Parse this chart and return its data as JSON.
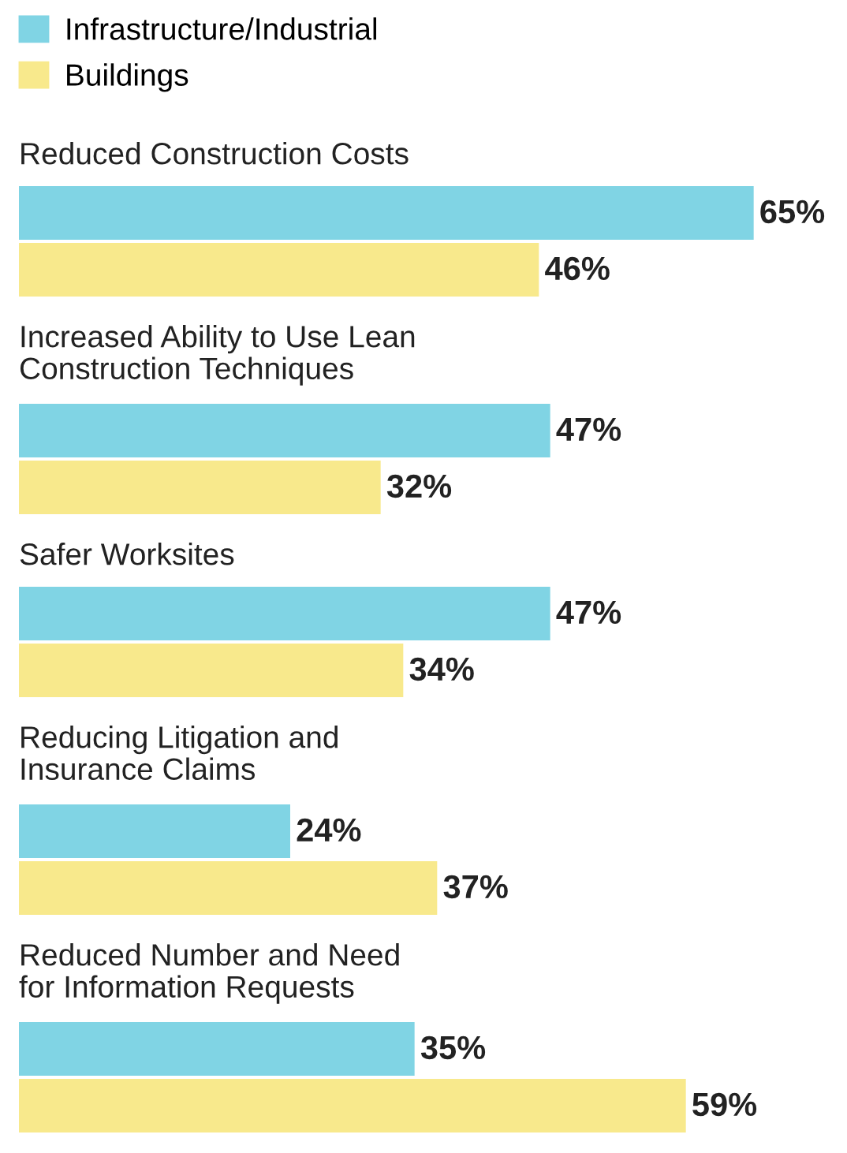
{
  "chart_data": {
    "type": "bar",
    "orientation": "horizontal",
    "categories": [
      "Reduced Construction Costs",
      "Increased Ability to Use Lean\nConstruction Techniques",
      "Safer Worksites",
      "Reducing Litigation and\nInsurance Claims",
      "Reduced Number and Need\nfor Information Requests"
    ],
    "series": [
      {
        "name": "Infrastructure/Industrial",
        "color": "#80d4e4",
        "values": [
          65,
          47,
          47,
          24,
          35
        ],
        "value_labels": [
          "65%",
          "47%",
          "47%",
          "24%",
          "35%"
        ]
      },
      {
        "name": "Buildings",
        "color": "#f8e98c",
        "values": [
          46,
          32,
          34,
          37,
          59
        ],
        "value_labels": [
          "46%",
          "32%",
          "34%",
          "37%",
          "59%"
        ]
      }
    ],
    "legend": "top left"
  }
}
